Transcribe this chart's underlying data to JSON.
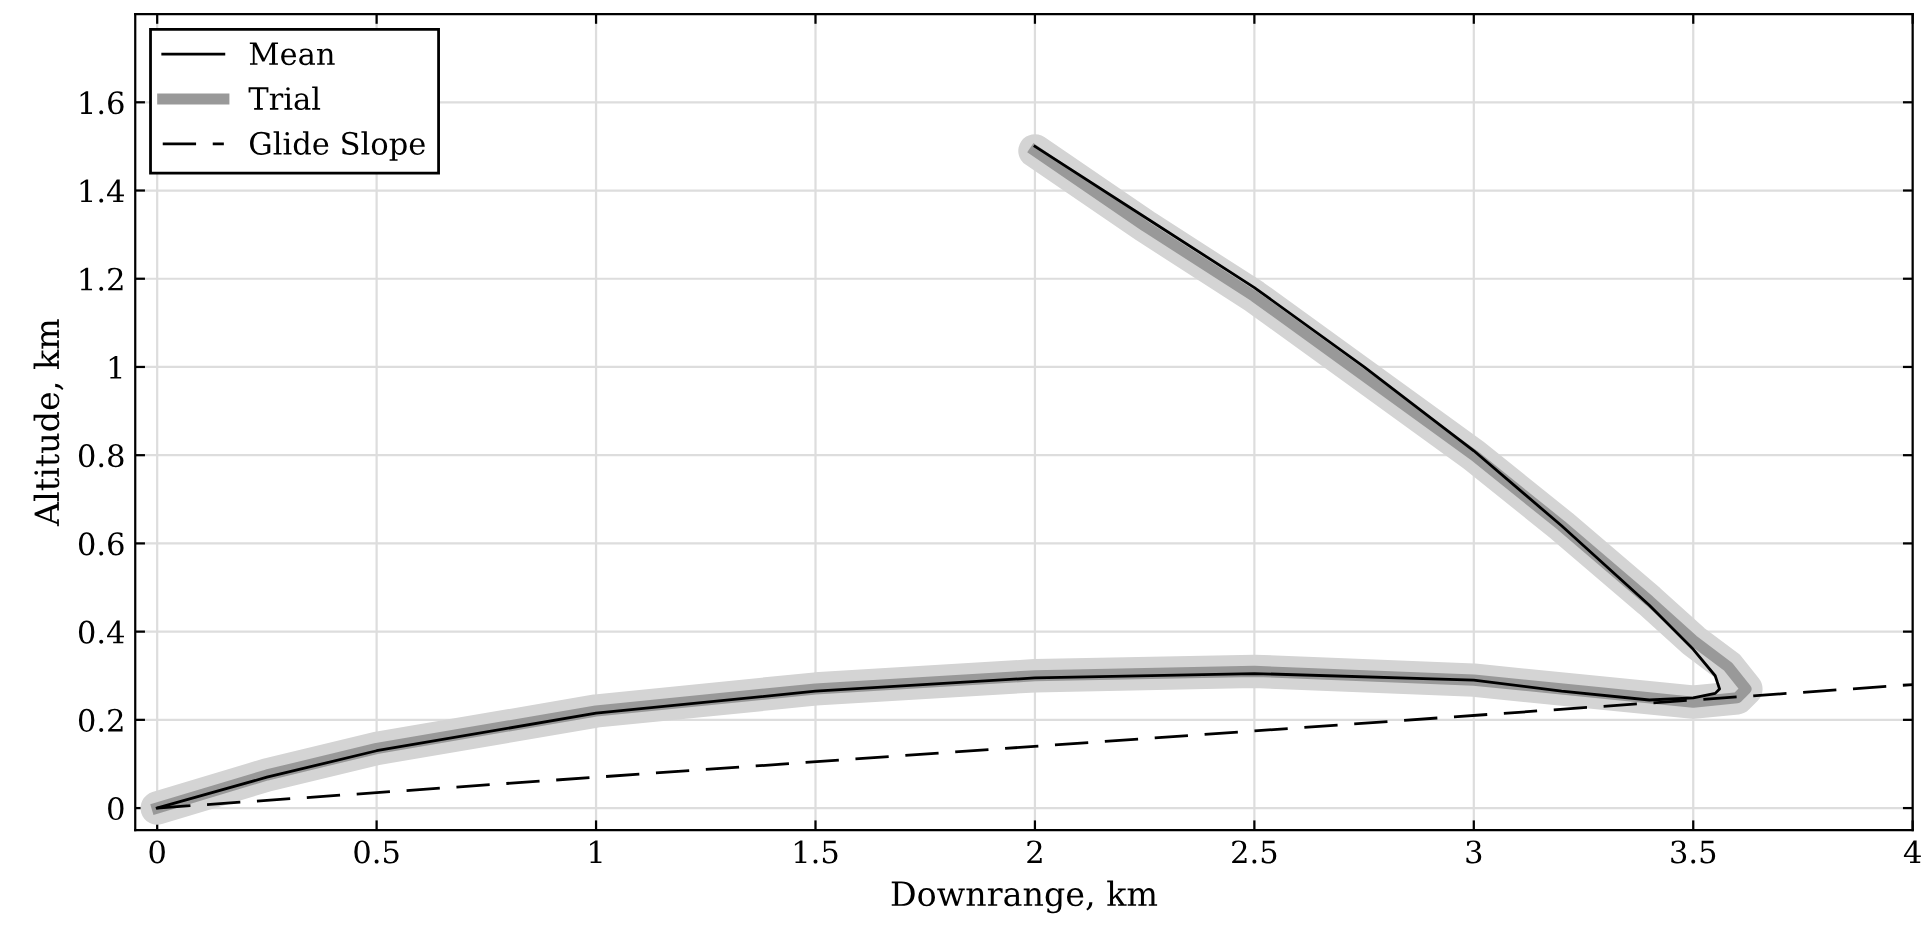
{
  "chart_data": {
    "type": "line",
    "xlabel": "Downrange, km",
    "ylabel": "Altitude, km",
    "xlim": [
      -0.05,
      4
    ],
    "ylim": [
      -0.05,
      1.8
    ],
    "xticks": [
      0,
      0.5,
      1,
      1.5,
      2,
      2.5,
      3,
      3.5,
      4
    ],
    "yticks": [
      0,
      0.2,
      0.4,
      0.6,
      0.8,
      1,
      1.2,
      1.4,
      1.6
    ],
    "grid": true,
    "legend": "top left",
    "marker": "none",
    "series": [
      {
        "name": "Trial",
        "color": "#999999",
        "x": [
          2,
          2.25,
          2.5,
          2.75,
          3,
          3.2,
          3.4,
          3.5,
          3.58,
          3.62,
          3.6,
          3.5,
          3.3,
          3,
          2.5,
          2,
          1.5,
          1,
          0.5,
          0.25,
          0
        ],
        "values": [
          1.49,
          1.32,
          1.16,
          0.98,
          0.8,
          0.64,
          0.47,
          0.38,
          0.32,
          0.27,
          0.25,
          0.24,
          0.26,
          0.29,
          0.31,
          0.3,
          0.27,
          0.22,
          0.135,
          0.075,
          0
        ]
      },
      {
        "name": "Mean",
        "color": "#000000",
        "x": [
          2,
          2.25,
          2.5,
          2.75,
          3,
          3.2,
          3.4,
          3.5,
          3.55,
          3.56,
          3.55,
          3.5,
          3.4,
          3.2,
          3,
          2.5,
          2,
          1.5,
          1,
          0.5,
          0.25,
          0
        ],
        "values": [
          1.5,
          1.34,
          1.18,
          1.0,
          0.81,
          0.64,
          0.46,
          0.36,
          0.3,
          0.27,
          0.26,
          0.25,
          0.245,
          0.265,
          0.29,
          0.305,
          0.295,
          0.265,
          0.215,
          0.13,
          0.07,
          0
        ]
      },
      {
        "name": "Glide Slope",
        "color": "#000000",
        "line_style": "dashed",
        "x": [
          0,
          4
        ],
        "values": [
          0,
          0.28
        ]
      }
    ]
  }
}
